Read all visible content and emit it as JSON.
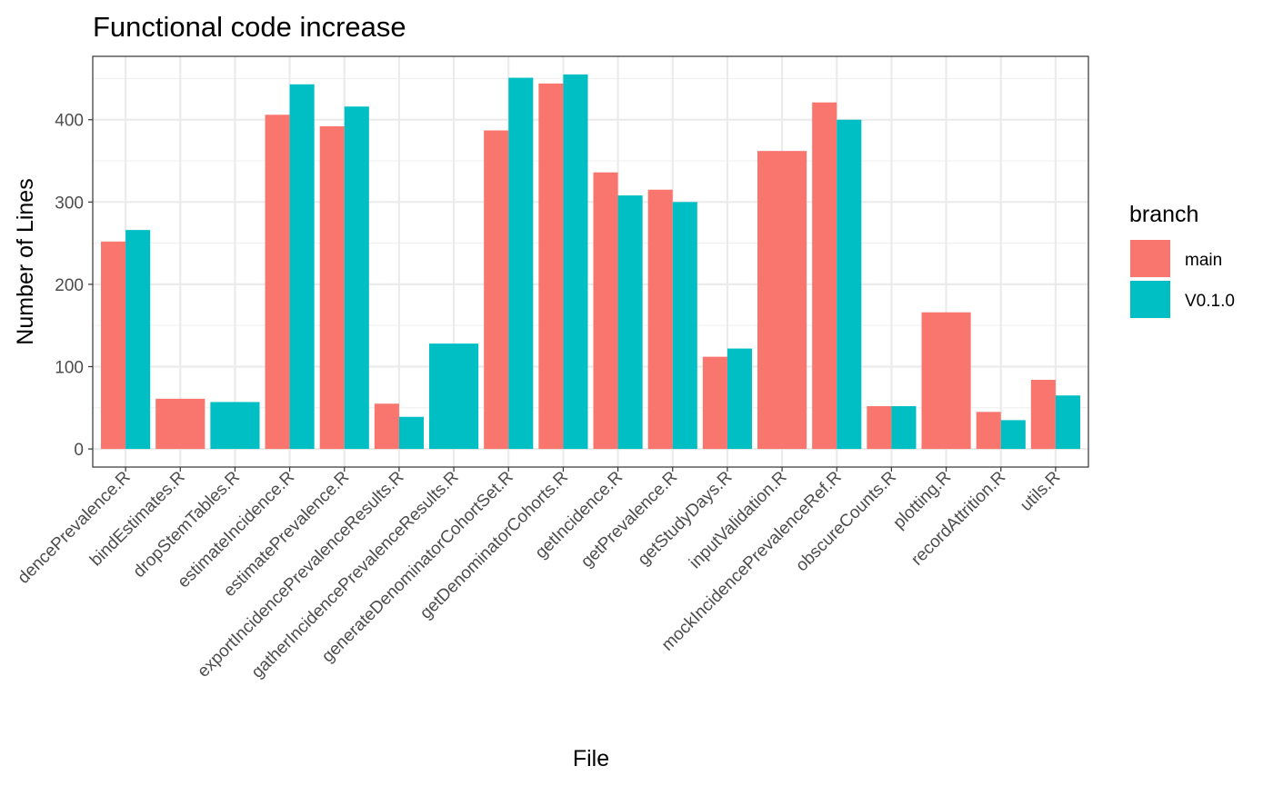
{
  "chart_data": {
    "type": "bar",
    "title": "Functional code increase",
    "xlabel": "File",
    "ylabel": "Number of Lines",
    "ylim": [
      -22,
      477
    ],
    "yticks": [
      0,
      100,
      200,
      300,
      400
    ],
    "grid": true,
    "legend_position": "right",
    "legend_title": "branch",
    "categories": [
      "dencePrevalence.R",
      "bindEstimates.R",
      "dropStemTables.R",
      "estimateIncidence.R",
      "estimatePrevalence.R",
      "exportIncidencePrevalenceResults.R",
      "gatherIncidencePrevalenceResults.R",
      "generateDenominatorCohortSet.R",
      "getDenominatorCohorts.R",
      "getIncidence.R",
      "getPrevalence.R",
      "getStudyDays.R",
      "inputValidation.R",
      "mockIncidencePrevalenceRef.R",
      "obscureCounts.R",
      "plotting.R",
      "recordAttrition.R",
      "utils.R"
    ],
    "series": [
      {
        "name": "main",
        "color": "#F8766D",
        "values": [
          252,
          61,
          null,
          406,
          392,
          55,
          null,
          387,
          444,
          336,
          315,
          112,
          362,
          421,
          52,
          166,
          45,
          84
        ]
      },
      {
        "name": "V0.1.0",
        "color": "#00BFC4",
        "values": [
          266,
          null,
          57,
          443,
          416,
          39,
          128,
          451,
          455,
          308,
          300,
          122,
          null,
          400,
          52,
          null,
          35,
          65
        ]
      }
    ]
  }
}
